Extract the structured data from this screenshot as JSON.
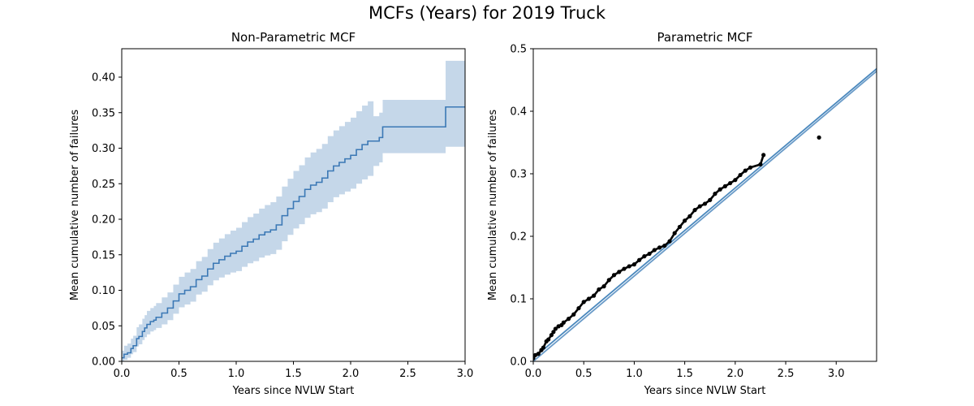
{
  "figure": {
    "title": "MCFs (Years) for 2019 Truck"
  },
  "colors": {
    "line": "#3b78b5",
    "band": "#c5d7e9",
    "points": "#000000",
    "fit": "#4a88bd",
    "fit2": "#6a9bc8"
  },
  "chart_data": [
    {
      "type": "line",
      "title": "Non-Parametric MCF",
      "xlabel": "Years since NVLW Start",
      "ylabel": "Mean cumulative number of failures",
      "xlim": [
        0,
        3.0
      ],
      "ylim": [
        0,
        0.44
      ],
      "xticks": [
        "0.0",
        "0.5",
        "1.0",
        "1.5",
        "2.0",
        "2.5",
        "3.0"
      ],
      "yticks": [
        "0.00",
        "0.05",
        "0.10",
        "0.15",
        "0.20",
        "0.25",
        "0.30",
        "0.35",
        "0.40"
      ],
      "grid": false,
      "series": [
        {
          "x": [
            0,
            0.02,
            0.05,
            0.08,
            0.1,
            0.13,
            0.15,
            0.18,
            0.2,
            0.22,
            0.25,
            0.28,
            0.3,
            0.35,
            0.4,
            0.45,
            0.5,
            0.55,
            0.6,
            0.65,
            0.7,
            0.75,
            0.8,
            0.85,
            0.9,
            0.95,
            1.0,
            1.05,
            1.1,
            1.15,
            1.2,
            1.25,
            1.3,
            1.35,
            1.4,
            1.45,
            1.5,
            1.55,
            1.6,
            1.65,
            1.7,
            1.75,
            1.8,
            1.85,
            1.9,
            1.95,
            2.0,
            2.05,
            2.1,
            2.15,
            2.2,
            2.25,
            2.28,
            2.83,
            3.0
          ],
          "y": [
            0.005,
            0.01,
            0.012,
            0.018,
            0.022,
            0.032,
            0.035,
            0.042,
            0.047,
            0.052,
            0.056,
            0.058,
            0.062,
            0.068,
            0.075,
            0.085,
            0.095,
            0.1,
            0.105,
            0.115,
            0.12,
            0.13,
            0.138,
            0.143,
            0.148,
            0.152,
            0.155,
            0.162,
            0.168,
            0.172,
            0.178,
            0.182,
            0.185,
            0.192,
            0.205,
            0.215,
            0.225,
            0.232,
            0.242,
            0.248,
            0.252,
            0.258,
            0.268,
            0.275,
            0.28,
            0.285,
            0.29,
            0.298,
            0.305,
            0.31,
            0.31,
            0.315,
            0.33,
            0.358,
            0.358
          ],
          "lower": [
            0.0,
            0.002,
            0.005,
            0.01,
            0.013,
            0.021,
            0.024,
            0.03,
            0.034,
            0.038,
            0.042,
            0.044,
            0.047,
            0.052,
            0.058,
            0.067,
            0.076,
            0.08,
            0.084,
            0.094,
            0.098,
            0.107,
            0.114,
            0.118,
            0.122,
            0.125,
            0.127,
            0.133,
            0.138,
            0.141,
            0.146,
            0.149,
            0.151,
            0.157,
            0.169,
            0.178,
            0.187,
            0.193,
            0.202,
            0.207,
            0.21,
            0.215,
            0.224,
            0.231,
            0.235,
            0.239,
            0.243,
            0.25,
            0.256,
            0.261,
            0.275,
            0.28,
            0.293,
            0.302,
            0.302
          ],
          "upper": [
            0.015,
            0.022,
            0.025,
            0.032,
            0.036,
            0.048,
            0.052,
            0.06,
            0.065,
            0.071,
            0.075,
            0.078,
            0.082,
            0.09,
            0.097,
            0.108,
            0.119,
            0.125,
            0.13,
            0.141,
            0.147,
            0.158,
            0.167,
            0.173,
            0.179,
            0.184,
            0.188,
            0.196,
            0.203,
            0.208,
            0.215,
            0.22,
            0.224,
            0.232,
            0.246,
            0.257,
            0.268,
            0.276,
            0.287,
            0.294,
            0.299,
            0.306,
            0.317,
            0.325,
            0.331,
            0.337,
            0.343,
            0.352,
            0.36,
            0.366,
            0.345,
            0.35,
            0.368,
            0.423,
            0.423
          ]
        }
      ]
    },
    {
      "type": "scatter",
      "title": "Parametric MCF",
      "xlabel": "Years since NVLW Start",
      "ylabel": "Mean cumulative number of failures",
      "xlim": [
        0,
        3.4
      ],
      "ylim": [
        0,
        0.5
      ],
      "xticks": [
        "0.0",
        "0.5",
        "1.0",
        "1.5",
        "2.0",
        "2.5",
        "3.0"
      ],
      "yticks": [
        "0.0",
        "0.1",
        "0.2",
        "0.3",
        "0.4",
        "0.5"
      ],
      "grid": false,
      "points": {
        "x": [
          0.0,
          0.02,
          0.05,
          0.08,
          0.1,
          0.13,
          0.15,
          0.18,
          0.2,
          0.22,
          0.25,
          0.28,
          0.3,
          0.35,
          0.4,
          0.45,
          0.5,
          0.55,
          0.6,
          0.65,
          0.7,
          0.75,
          0.8,
          0.85,
          0.9,
          0.95,
          1.0,
          1.05,
          1.1,
          1.15,
          1.2,
          1.25,
          1.3,
          1.35,
          1.4,
          1.45,
          1.5,
          1.55,
          1.6,
          1.65,
          1.7,
          1.75,
          1.8,
          1.85,
          1.9,
          1.95,
          2.0,
          2.05,
          2.1,
          2.15,
          2.25,
          2.28,
          2.83
        ],
        "y": [
          0.005,
          0.01,
          0.012,
          0.018,
          0.022,
          0.032,
          0.035,
          0.042,
          0.047,
          0.052,
          0.056,
          0.058,
          0.062,
          0.068,
          0.075,
          0.085,
          0.095,
          0.1,
          0.105,
          0.115,
          0.12,
          0.13,
          0.138,
          0.143,
          0.148,
          0.152,
          0.155,
          0.162,
          0.168,
          0.172,
          0.178,
          0.182,
          0.185,
          0.192,
          0.205,
          0.215,
          0.225,
          0.232,
          0.242,
          0.248,
          0.252,
          0.258,
          0.268,
          0.275,
          0.28,
          0.285,
          0.29,
          0.298,
          0.305,
          0.31,
          0.315,
          0.33,
          0.358
        ]
      },
      "fit_lines": [
        {
          "x": [
            0,
            3.4
          ],
          "y": [
            0.005,
            0.468
          ]
        },
        {
          "x": [
            0,
            3.4
          ],
          "y": [
            0.0,
            0.464
          ]
        }
      ]
    }
  ]
}
